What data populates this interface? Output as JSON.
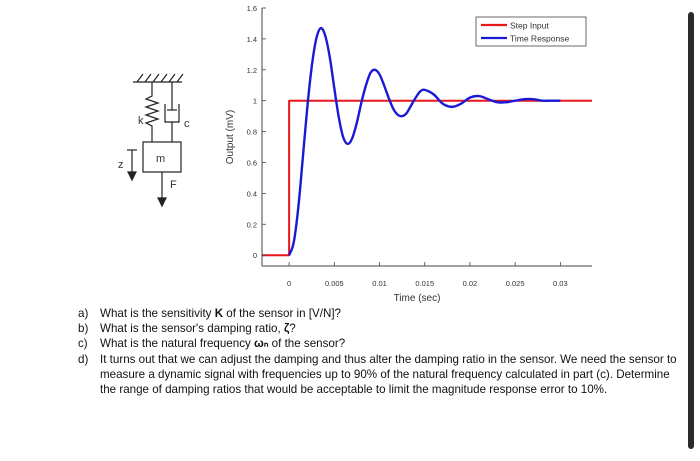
{
  "chart_data": {
    "type": "line",
    "title": "",
    "xlabel": "Time (sec)",
    "ylabel": "Output (mV)",
    "xlim": [
      -0.003,
      0.0335
    ],
    "ylim": [
      -0.07,
      1.6
    ],
    "xticks": [
      0,
      0.005,
      0.01,
      0.015,
      0.02,
      0.025,
      0.03
    ],
    "xtick_labels": [
      "0",
      "0.005",
      "0.01",
      "0.015",
      "0.02",
      "0.025",
      "0.03"
    ],
    "yticks": [
      0,
      0.2,
      0.4,
      0.6,
      0.8,
      1,
      1.2,
      1.4,
      1.6
    ],
    "ytick_labels": [
      "0",
      "0.2",
      "0.4",
      "0.6",
      "0.8",
      "1",
      "1.2",
      "1.4",
      "1.6"
    ],
    "grid": false,
    "legend_position": "top-right",
    "series": [
      {
        "name": "Step Input",
        "color": "#e8161b",
        "x": [
          -0.003,
          0,
          0,
          0.0335
        ],
        "y": [
          0,
          0,
          1,
          1
        ]
      },
      {
        "name": "Time Response",
        "color": "#1a1ad6",
        "x": [
          0,
          0.0005,
          0.001,
          0.0015,
          0.002,
          0.0025,
          0.003,
          0.0035,
          0.004,
          0.0045,
          0.005,
          0.0055,
          0.006,
          0.0065,
          0.007,
          0.0075,
          0.008,
          0.0085,
          0.009,
          0.0095,
          0.01,
          0.0105,
          0.011,
          0.0115,
          0.012,
          0.0125,
          0.013,
          0.0135,
          0.014,
          0.0145,
          0.015,
          0.016,
          0.017,
          0.018,
          0.019,
          0.02,
          0.021,
          0.022,
          0.023,
          0.024,
          0.025,
          0.026,
          0.027,
          0.028,
          0.029,
          0.03
        ],
        "y": [
          0,
          0.08,
          0.3,
          0.62,
          0.95,
          1.22,
          1.4,
          1.47,
          1.42,
          1.28,
          1.08,
          0.89,
          0.76,
          0.72,
          0.76,
          0.86,
          0.99,
          1.1,
          1.18,
          1.2,
          1.17,
          1.1,
          1.02,
          0.95,
          0.91,
          0.9,
          0.92,
          0.97,
          1.02,
          1.06,
          1.07,
          1.04,
          0.98,
          0.96,
          0.98,
          1.02,
          1.03,
          1.01,
          0.99,
          0.99,
          1.0,
          1.01,
          1.01,
          1.0,
          1.0,
          1.0
        ]
      }
    ]
  },
  "diagram": {
    "spring_label": "k",
    "damper_label": "c",
    "mass_label": "m",
    "coord_label": "z",
    "force_label": "F"
  },
  "questions": [
    {
      "letter": "a)",
      "parts": [
        {
          "text": "What is the sensitivity ",
          "bold": false
        },
        {
          "text": "K",
          "bold": true
        },
        {
          "text": " of the sensor in [V/N]?",
          "bold": false
        }
      ]
    },
    {
      "letter": "b)",
      "parts": [
        {
          "text": "What is the sensor's damping ratio, ",
          "bold": false
        },
        {
          "text": "ζ",
          "bold": true
        },
        {
          "text": "?",
          "bold": false
        }
      ]
    },
    {
      "letter": "c)",
      "parts": [
        {
          "text": "What is the natural frequency ",
          "bold": false
        },
        {
          "text": "ωₙ",
          "bold": true
        },
        {
          "text": " of the sensor?",
          "bold": false
        }
      ]
    },
    {
      "letter": "d)",
      "parts": [
        {
          "text": "It turns out that we can adjust the damping and thus alter the damping ratio in the sensor. We need the sensor to measure a dynamic signal with frequencies up to 90% of the natural frequency calculated in part (c). Determine the range of damping ratios that would be acceptable to limit the magnitude response error to 10%.",
          "bold": false
        }
      ]
    }
  ]
}
